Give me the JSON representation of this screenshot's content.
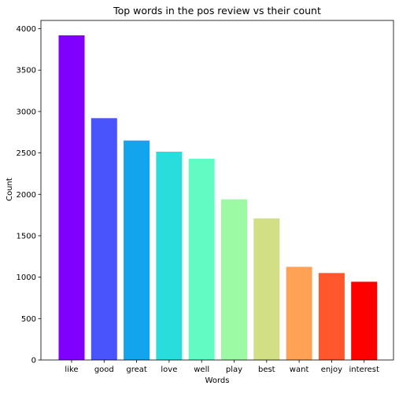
{
  "chart_data": {
    "type": "bar",
    "title": "Top words in the pos review vs their count",
    "xlabel": "Words",
    "ylabel": "Count",
    "categories": [
      "like",
      "good",
      "great",
      "love",
      "well",
      "play",
      "best",
      "want",
      "enjoy",
      "interest"
    ],
    "values": [
      3920,
      2920,
      2650,
      2515,
      2430,
      1940,
      1710,
      1125,
      1050,
      945
    ],
    "colors": [
      "#8000ff",
      "#4a54fc",
      "#12a4ed",
      "#2adddd",
      "#62fbc4",
      "#9cfaa4",
      "#d3df84",
      "#ffa256",
      "#ff562c",
      "#ff0000"
    ],
    "ylim": [
      0,
      4100
    ],
    "yticks": [
      0,
      500,
      1000,
      1500,
      2000,
      2500,
      3000,
      3500,
      4000
    ],
    "grid": false,
    "legend": "none"
  }
}
